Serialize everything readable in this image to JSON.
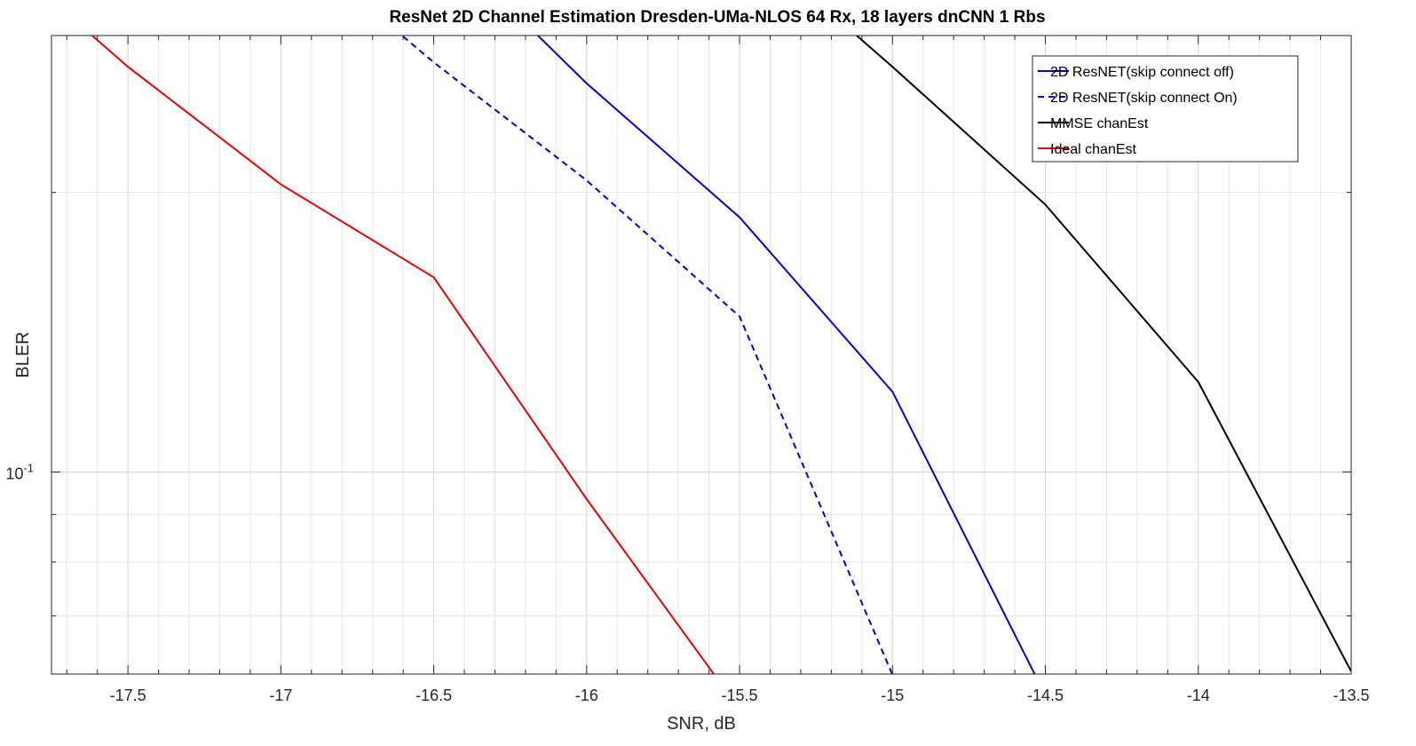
{
  "chart_data": {
    "type": "line",
    "title": "ResNet 2D Channel Estimation Dresden-UMa-NLOS 64 Rx, 18 layers dnCNN 1 Rbs",
    "xlabel": "SNR, dB",
    "ylabel": "BLER",
    "xlim": [
      -17.75,
      -13.5
    ],
    "ylim": [
      0.0606,
      0.295
    ],
    "yscale": "log",
    "grid": "on (major and minor)",
    "legend_position": "top-right",
    "x_ticks": [
      -17.5,
      -17,
      -16.5,
      -16,
      -15.5,
      -15,
      -14.5,
      -14,
      -13.5
    ],
    "x_tick_labels": [
      "-17.5",
      "-17",
      "-16.5",
      "-16",
      "-15.5",
      "-15",
      "-14.5",
      "-14",
      "-13.5"
    ],
    "y_tick_label_base": "10",
    "y_tick_label_exp": "-1",
    "series": [
      {
        "name": "2D ResNET(skip connect off)",
        "color": "#0000cc",
        "dash": "solid",
        "x": [
          -16.5,
          -16.0,
          -15.5,
          -15.0,
          -14.5
        ],
        "y": [
          0.38,
          0.262,
          0.188,
          0.122,
          0.0575
        ]
      },
      {
        "name": "2D ResNET(skip connect On)",
        "color": "#0000cc",
        "dash": "dashed",
        "x": [
          -17.0,
          -16.5,
          -16.0,
          -15.5,
          -15.0
        ],
        "y": [
          0.38,
          0.276,
          0.206,
          0.147,
          0.0605
        ]
      },
      {
        "name": "MMSE chanEst",
        "color": "#000000",
        "dash": "solid",
        "x": [
          -15.5,
          -15.0,
          -14.5,
          -14.0,
          -13.5
        ],
        "y": [
          0.38,
          0.273,
          0.194,
          0.125,
          0.061
        ]
      },
      {
        "name": "Ideal chanEst",
        "color": "#e60000",
        "dash": "solid",
        "x": [
          -18.0,
          -17.5,
          -17.0,
          -16.5,
          -16.0,
          -15.5
        ],
        "y": [
          0.38,
          0.273,
          0.204,
          0.162,
          0.0935,
          0.0555
        ]
      }
    ]
  }
}
